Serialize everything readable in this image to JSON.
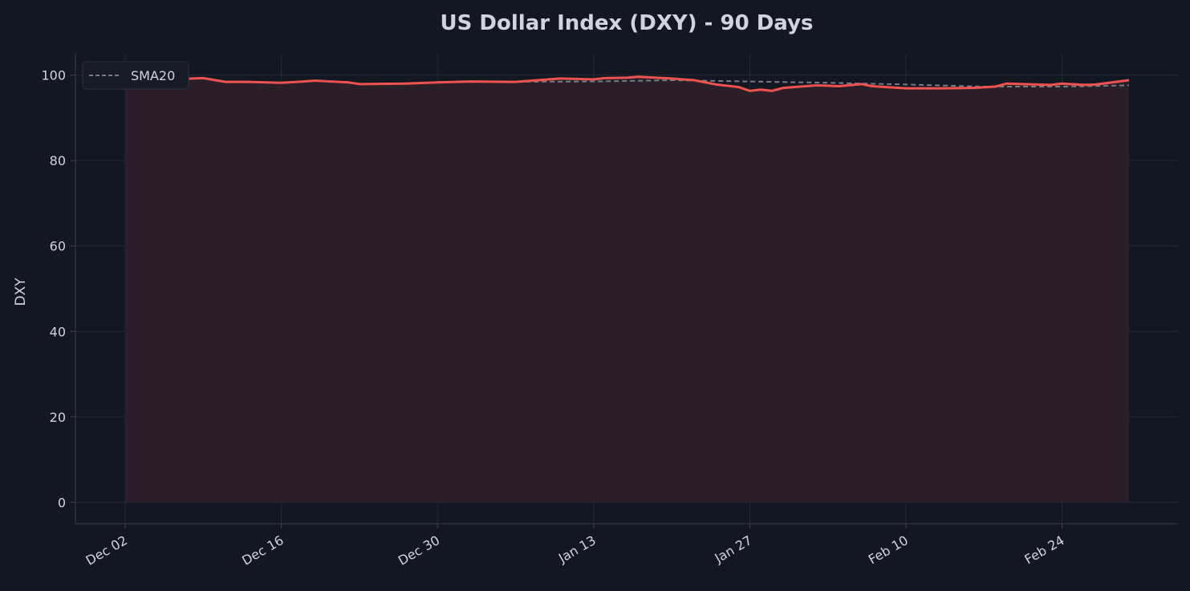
{
  "chart_data": {
    "type": "line",
    "title": "US Dollar Index (DXY) - 90 Days",
    "xlabel": "",
    "ylabel": "DXY",
    "ylim": [
      -5,
      105
    ],
    "yticks": [
      0,
      20,
      40,
      60,
      80,
      100
    ],
    "xticks": [
      "Dec 02",
      "Dec 16",
      "Dec 30",
      "Jan 13",
      "Jan 27",
      "Feb 10",
      "Feb 24"
    ],
    "grid": true,
    "legend": {
      "placement": "top-left",
      "entries": [
        "SMA20"
      ]
    },
    "colors": {
      "price": "#ef5350",
      "fill": "#2a1f28",
      "sma": "#787b86",
      "background": "#131722",
      "grid": "#262a33",
      "text": "#d1d4dc"
    },
    "series": [
      {
        "x": [
          "Dec 02",
          "Dec 06",
          "Dec 09",
          "Dec 11",
          "Dec 13",
          "Dec 16",
          "Dec 18",
          "Dec 19",
          "Dec 22",
          "Dec 23",
          "Dec 27",
          "Dec 30",
          "Jan 02",
          "Jan 06",
          "Jan 08",
          "Jan 10",
          "Jan 13",
          "Jan 14",
          "Jan 16",
          "Jan 17",
          "Jan 20",
          "Jan 22",
          "Jan 24",
          "Jan 26",
          "Jan 27",
          "Jan 28",
          "Jan 29",
          "Jan 30",
          "Feb 02",
          "Feb 04",
          "Feb 06",
          "Feb 07",
          "Feb 10",
          "Feb 13",
          "Feb 16",
          "Feb 18",
          "Feb 19",
          "Feb 23",
          "Feb 24",
          "Feb 26",
          "Feb 27",
          "Mar 02"
        ],
        "values": [
          99.2,
          99.0,
          99.3,
          98.4,
          98.4,
          98.2,
          98.5,
          98.7,
          98.3,
          97.9,
          98.0,
          98.3,
          98.5,
          98.4,
          98.8,
          99.2,
          99.0,
          99.3,
          99.4,
          99.6,
          99.2,
          98.8,
          97.8,
          97.2,
          96.3,
          96.6,
          96.3,
          97.0,
          97.6,
          97.4,
          97.9,
          97.4,
          96.9,
          96.9,
          97.0,
          97.3,
          98.0,
          97.7,
          98.0,
          97.7,
          97.8,
          98.8
        ]
      },
      {
        "name": "SMA20",
        "x": [
          "Dec 30",
          "Jan 13",
          "Jan 20",
          "Jan 27",
          "Feb 03",
          "Feb 10",
          "Feb 17",
          "Feb 24",
          "Mar 02"
        ],
        "values": [
          98.4,
          98.5,
          98.8,
          98.5,
          98.2,
          97.8,
          97.3,
          97.3,
          97.6
        ]
      }
    ]
  }
}
